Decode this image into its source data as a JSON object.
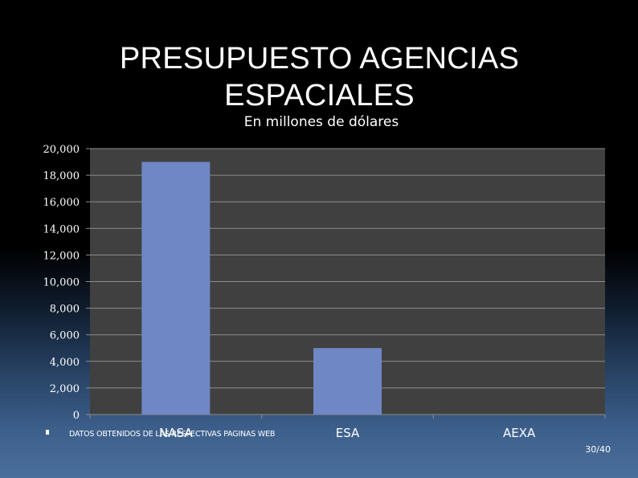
{
  "slide": {
    "title": "PRESUPUESTO AGENCIAS ESPACIALES",
    "subtitle": "En millones de dólares",
    "footnote": "DATOS OBTENIDOS DE LAS RESPECTIVAS PAGINAS WEB",
    "page_number": "30/40"
  },
  "chart_data": {
    "type": "bar",
    "title": "PRESUPUESTO AGENCIAS ESPACIALES",
    "subtitle": "En millones de dólares",
    "categories": [
      "NASA",
      "ESA",
      "AEXA"
    ],
    "values": [
      19000,
      5000,
      0
    ],
    "ylim": [
      0,
      20000
    ],
    "yticks": [
      0,
      2000,
      4000,
      6000,
      8000,
      10000,
      12000,
      14000,
      16000,
      18000,
      20000
    ],
    "ytick_labels": [
      "0",
      "2,000",
      "4,000",
      "6,000",
      "8,000",
      "10,000",
      "12,000",
      "14,000",
      "16,000",
      "18,000",
      "20,000"
    ],
    "xlabel": "",
    "ylabel": "",
    "grid": true,
    "legend": "none"
  },
  "colors": {
    "plot_background": "#404040",
    "bar": "#6f87c4",
    "gridline": "#8c8c8c",
    "text": "#ffffff"
  }
}
